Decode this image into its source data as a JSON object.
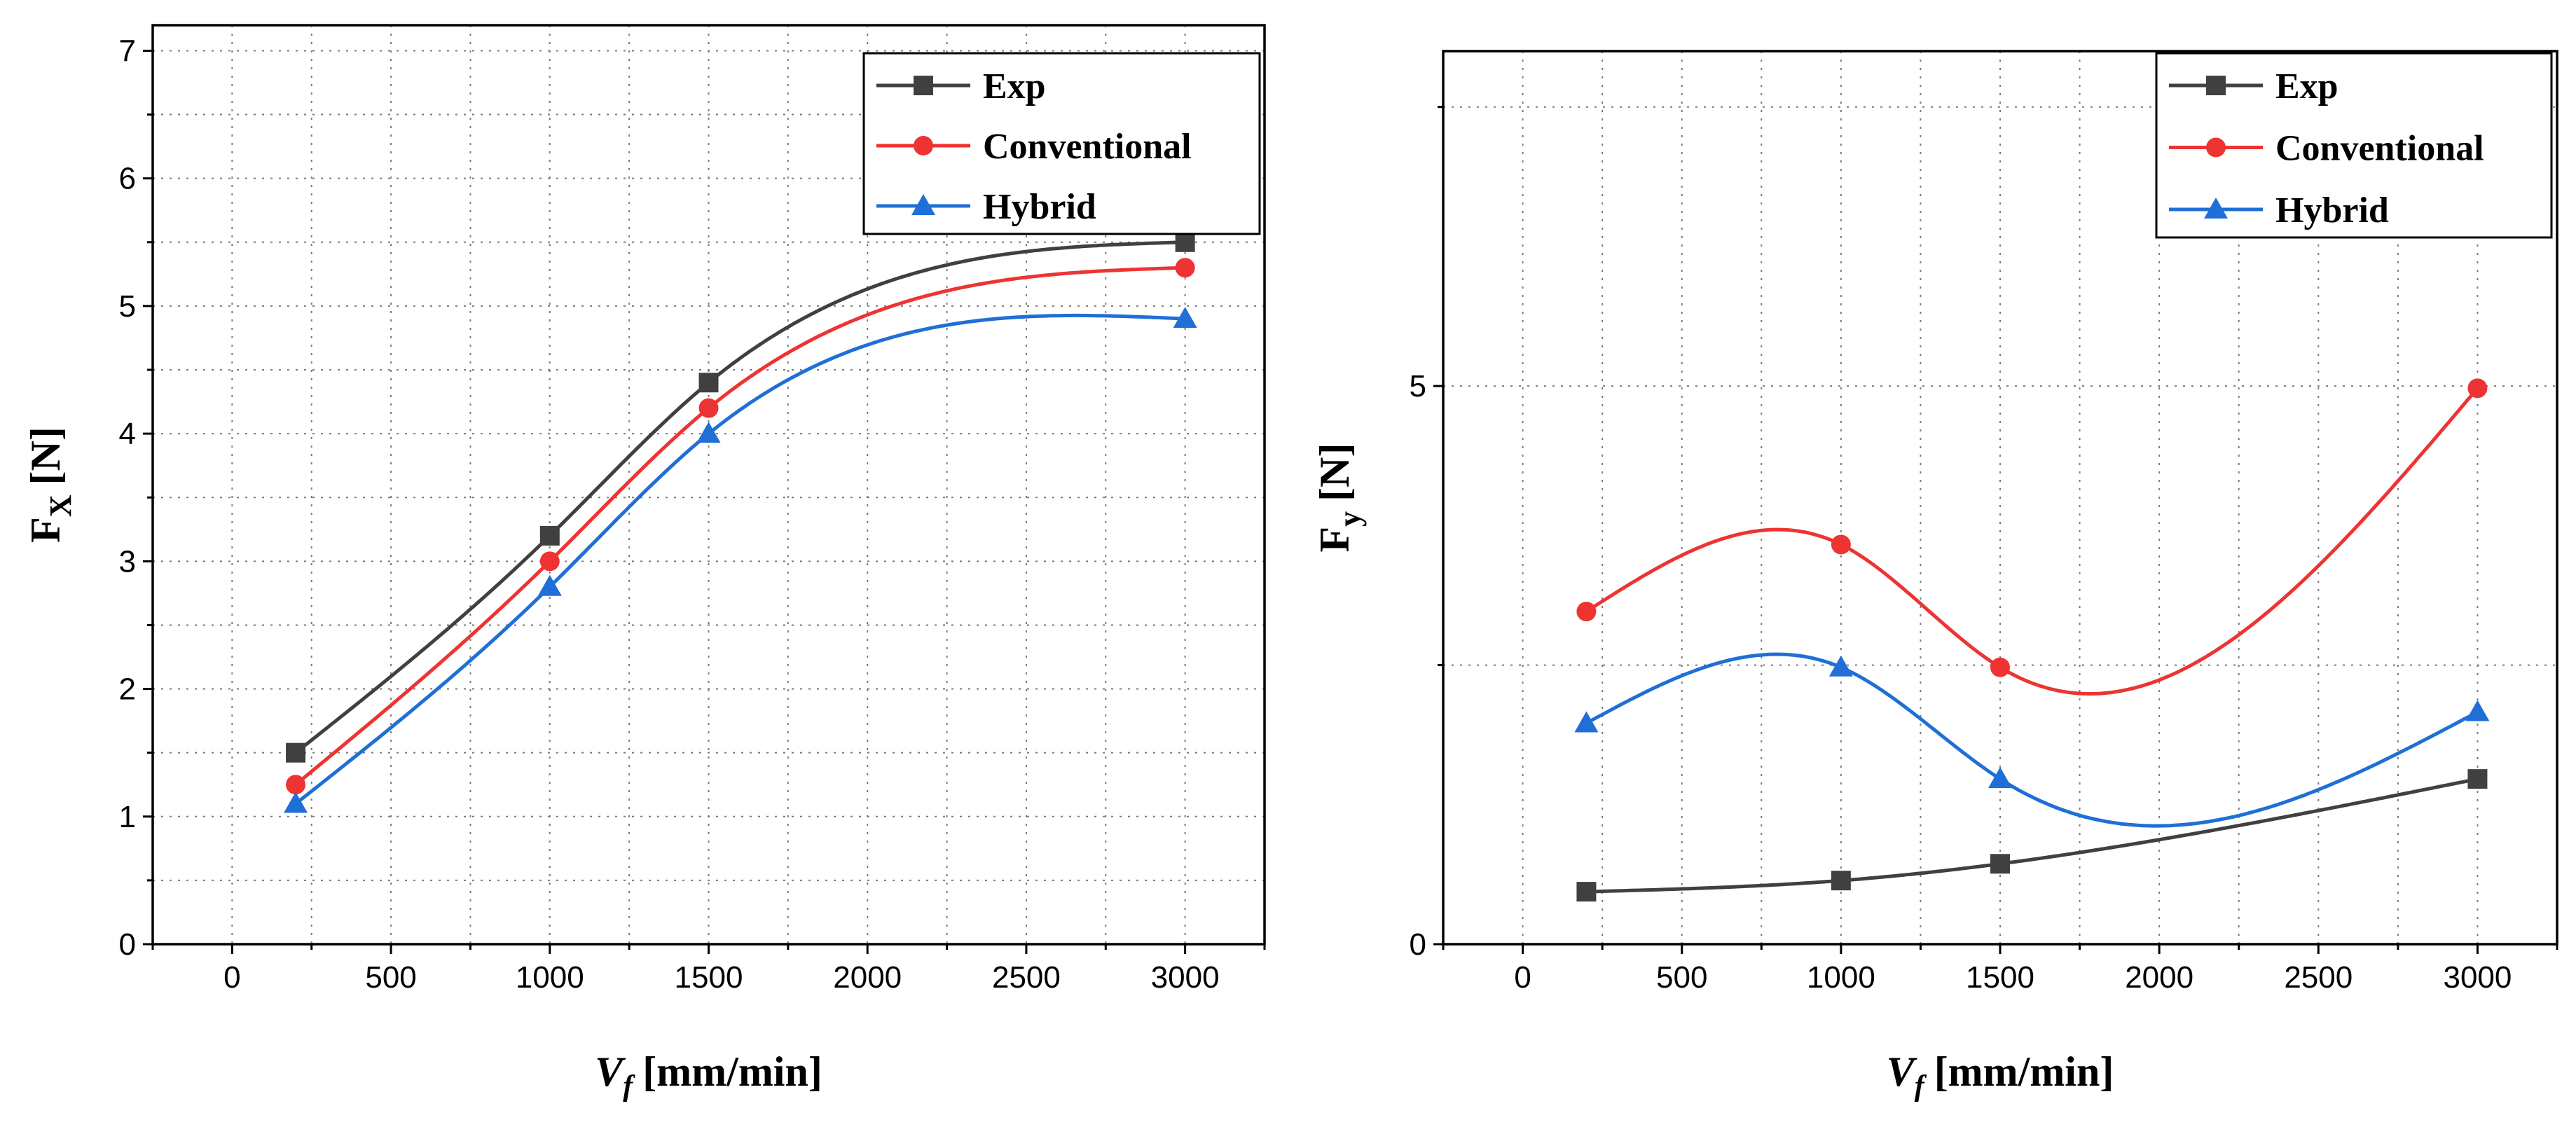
{
  "chart_data": [
    {
      "type": "line",
      "xlabel": {
        "main": "V",
        "sub": "f",
        "unit": "[mm/min]"
      },
      "ylabel": {
        "main": "F",
        "sub": "X",
        "unit": "[N]"
      },
      "xlim": [
        -250,
        3250
      ],
      "ylim": [
        0,
        7.2
      ],
      "xticks": [
        0,
        500,
        1000,
        1500,
        2000,
        2500,
        3000
      ],
      "yticks": [
        0,
        1,
        2,
        3,
        4,
        5,
        6,
        7
      ],
      "x": [
        200,
        1000,
        1500,
        3000
      ],
      "grid": true,
      "legend": "top-right",
      "series": [
        {
          "name": "Exp",
          "marker": "square",
          "color": "#404040",
          "values": [
            1.5,
            3.2,
            4.4,
            5.5
          ]
        },
        {
          "name": "Conventional",
          "marker": "circle",
          "color": "#ee3333",
          "values": [
            1.25,
            3.0,
            4.2,
            5.3
          ]
        },
        {
          "name": "Hybrid",
          "marker": "triangle",
          "color": "#1f6fd6",
          "values": [
            1.1,
            2.8,
            4.0,
            4.9
          ]
        }
      ]
    },
    {
      "type": "line",
      "xlabel": {
        "main": "V",
        "sub": "f",
        "unit": "[mm/min]"
      },
      "ylabel": {
        "main": "F",
        "sub": "y",
        "unit": "[N]"
      },
      "xlim": [
        -250,
        3250
      ],
      "ylim": [
        0,
        8
      ],
      "xticks": [
        0,
        500,
        1000,
        1500,
        2000,
        2500,
        3000
      ],
      "yticks": [
        0,
        5
      ],
      "minor_yticks": [
        2.5,
        7.5
      ],
      "x": [
        200,
        1000,
        1500,
        3000
      ],
      "grid": true,
      "legend": "top-right",
      "series": [
        {
          "name": "Exp",
          "marker": "square",
          "color": "#404040",
          "values": [
            0.47,
            0.57,
            0.72,
            1.48
          ]
        },
        {
          "name": "Conventional",
          "marker": "circle",
          "color": "#ee3333",
          "values": [
            2.98,
            3.58,
            2.48,
            4.98
          ]
        },
        {
          "name": "Hybrid",
          "marker": "triangle",
          "color": "#1f6fd6",
          "values": [
            1.98,
            2.48,
            1.48,
            2.08
          ]
        }
      ]
    }
  ]
}
